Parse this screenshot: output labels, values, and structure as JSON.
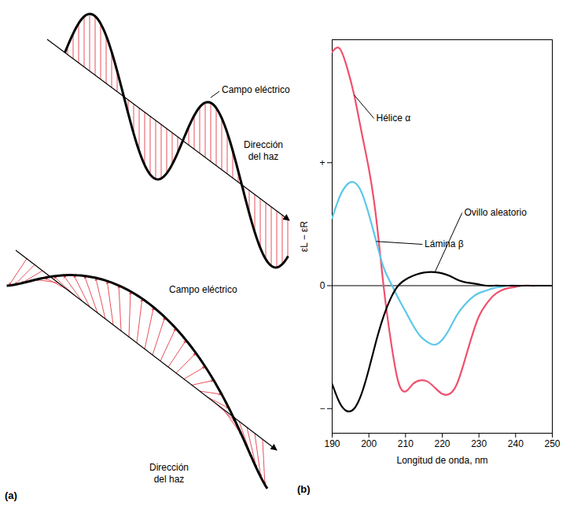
{
  "panel_labels": [
    "(a)",
    "(b)"
  ],
  "diagram": {
    "waves": [
      {
        "field_label": "Campo eléctrico",
        "direction_label": "Dirección del haz"
      },
      {
        "field_label": "Campo eléctrico",
        "direction_label": "Dirección del haz"
      }
    ]
  },
  "chart_data": {
    "type": "line",
    "x_label": "Longitud de onda, nm",
    "y_label": "εL − εR",
    "x": [
      190,
      192,
      194,
      196,
      198,
      200,
      202,
      204,
      206,
      208,
      210,
      212,
      214,
      216,
      218,
      220,
      222,
      224,
      226,
      228,
      230,
      232,
      234,
      236,
      238,
      240,
      242,
      244,
      246,
      248,
      250
    ],
    "series": [
      {
        "name": "Hélice α",
        "color": "#f0506e",
        "values": [
          1.9,
          1.93,
          1.78,
          1.55,
          1.25,
          0.95,
          0.55,
          0,
          -0.45,
          -0.78,
          -0.86,
          -0.8,
          -0.77,
          -0.78,
          -0.83,
          -0.88,
          -0.88,
          -0.8,
          -0.62,
          -0.42,
          -0.25,
          -0.15,
          -0.08,
          -0.04,
          -0.02,
          -0.01,
          0,
          0,
          0,
          0,
          0
        ]
      },
      {
        "name": "Lámina β",
        "color": "#5cc8ea",
        "values": [
          0.55,
          0.72,
          0.82,
          0.84,
          0.76,
          0.58,
          0.36,
          0.15,
          0.02,
          -0.1,
          -0.21,
          -0.32,
          -0.41,
          -0.46,
          -0.48,
          -0.44,
          -0.35,
          -0.24,
          -0.16,
          -0.1,
          -0.06,
          -0.04,
          -0.02,
          -0.01,
          0,
          0,
          0,
          0,
          0,
          0,
          0
        ]
      },
      {
        "name": "Ovillo aleatorio",
        "color": "#000000",
        "values": [
          -0.8,
          -0.95,
          -1.02,
          -1.0,
          -0.88,
          -0.68,
          -0.45,
          -0.25,
          -0.1,
          0,
          0.05,
          0.08,
          0.1,
          0.11,
          0.11,
          0.1,
          0.08,
          0.05,
          0.03,
          0.02,
          0.01,
          0,
          0,
          0,
          0,
          0,
          0,
          0,
          0,
          0,
          0
        ]
      }
    ],
    "xlim": [
      190,
      250
    ],
    "xticks": [
      190,
      200,
      210,
      220,
      230,
      240,
      250
    ],
    "ylim": [
      -1.2,
      2
    ],
    "yticks": [
      {
        "value": -1,
        "label": "−"
      },
      0,
      {
        "value": 1,
        "label": "+"
      }
    ],
    "grid": false
  }
}
